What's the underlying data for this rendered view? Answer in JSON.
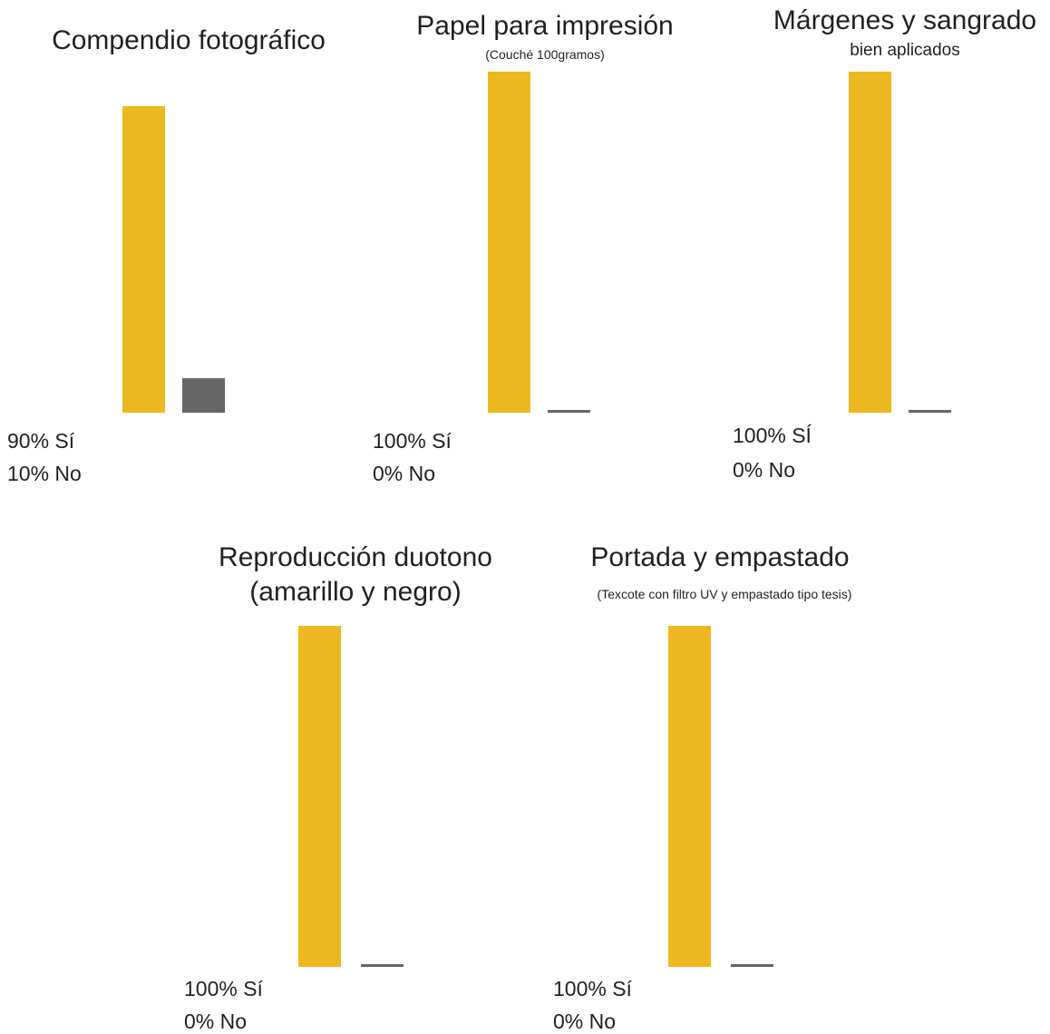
{
  "colors": {
    "si": "#ebb81f",
    "no": "#666666"
  },
  "chart_data": [
    {
      "type": "bar",
      "title": "Compendio fotográfico",
      "subtitle": "",
      "categories": [
        "Sí",
        "No"
      ],
      "values": [
        90,
        10
      ],
      "labels": [
        "90% Sí",
        "10% No"
      ],
      "ylim": [
        0,
        100
      ]
    },
    {
      "type": "bar",
      "title": "Papel para impresión",
      "subtitle": "(Couché 100gramos)",
      "categories": [
        "Sí",
        "No"
      ],
      "values": [
        100,
        0
      ],
      "labels": [
        "100% Sí",
        "0% No"
      ],
      "ylim": [
        0,
        100
      ]
    },
    {
      "type": "bar",
      "title": "Márgenes y sangrado",
      "subtitle": "bien aplicados",
      "categories": [
        "SÍ",
        "No"
      ],
      "values": [
        100,
        0
      ],
      "labels": [
        "100% SÍ",
        "0% No"
      ],
      "ylim": [
        0,
        100
      ]
    },
    {
      "type": "bar",
      "title": "Reproducción duotono",
      "subtitle": "(amarillo y negro)",
      "categories": [
        "Sí",
        "No"
      ],
      "values": [
        100,
        0
      ],
      "labels": [
        "100% Sí",
        "0% No"
      ],
      "ylim": [
        0,
        100
      ]
    },
    {
      "type": "bar",
      "title": "Portada y empastado",
      "subtitle": "(Texcote con filtro UV y empastado tipo tesis)",
      "categories": [
        "Sí",
        "No"
      ],
      "values": [
        100,
        0
      ],
      "labels": [
        "100% Sí",
        "0% No"
      ],
      "ylim": [
        0,
        100
      ]
    }
  ]
}
